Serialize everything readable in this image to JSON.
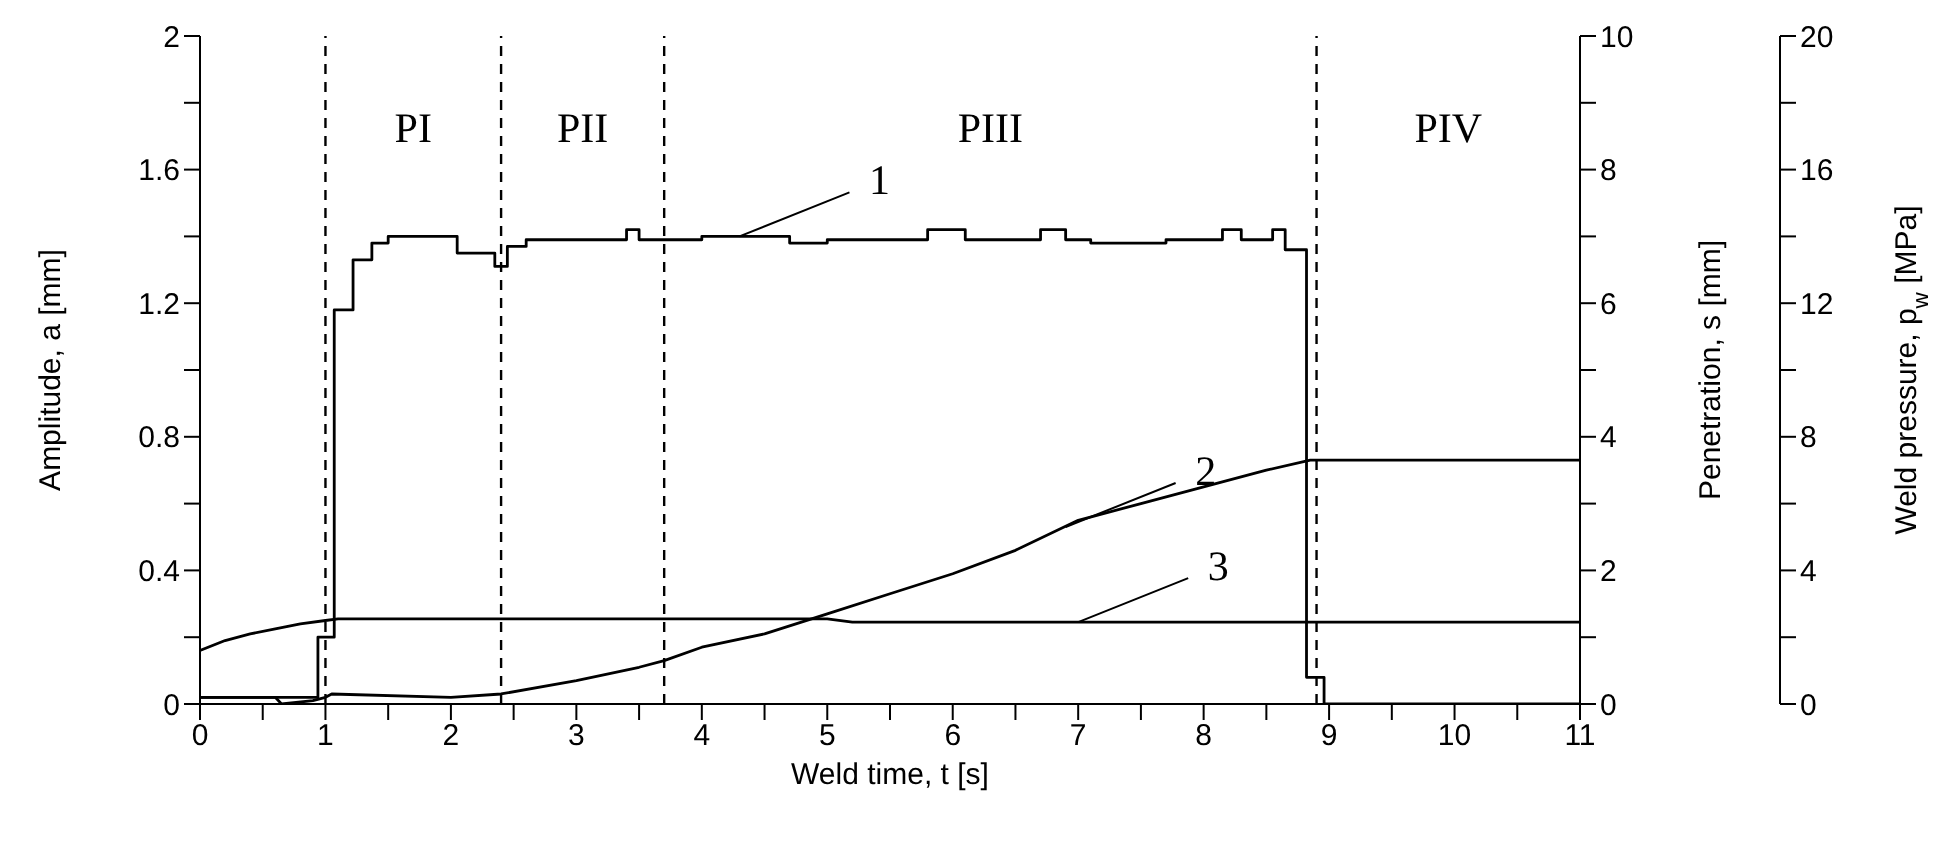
{
  "chart_data": {
    "type": "line",
    "xlabel": "Weld time, t [s]",
    "ylabel": "Amplitude, a [mm]",
    "y2label": "Penetration, s [mm]",
    "y3label": "Weld pressure, p$_{w}$ [MPa]",
    "xlim": [
      0,
      11
    ],
    "xticks": [
      0,
      {
        "value": 0.5,
        "label": null
      },
      1,
      {
        "value": 1.5,
        "label": null
      },
      2,
      {
        "value": 2.5,
        "label": null
      },
      3,
      {
        "value": 3.5,
        "label": null
      },
      4,
      {
        "value": 4.5,
        "label": null
      },
      5,
      {
        "value": 5.5,
        "label": null
      },
      6,
      {
        "value": 6.5,
        "label": null
      },
      7,
      {
        "value": 7.5,
        "label": null
      },
      8,
      {
        "value": 8.5,
        "label": null
      },
      9,
      {
        "value": 9.5,
        "label": null
      },
      10,
      {
        "value": 10.5,
        "label": null
      },
      11
    ],
    "ylim": [
      0,
      2
    ],
    "yticks": [
      0,
      {
        "value": 0.2,
        "label": null
      },
      0.4,
      {
        "value": 0.6,
        "label": null
      },
      0.8,
      {
        "value": 1,
        "label": null
      },
      1.2,
      {
        "value": 1.4,
        "label": null
      },
      1.6,
      {
        "value": 1.8,
        "label": null
      },
      2
    ],
    "y2lim": [
      0,
      10
    ],
    "y2ticks": [
      0,
      {
        "value": 1,
        "label": null
      },
      2,
      {
        "value": 3,
        "label": null
      },
      4,
      {
        "value": 5,
        "label": null
      },
      6,
      {
        "value": 7,
        "label": null
      },
      8,
      {
        "value": 9,
        "label": null
      },
      10
    ],
    "y3lim": [
      0,
      20
    ],
    "y3ticks": [
      0,
      {
        "value": 2,
        "label": null
      },
      4,
      {
        "value": 6,
        "label": null
      },
      8,
      {
        "value": 10,
        "label": null
      },
      12,
      {
        "value": 14,
        "label": null
      },
      16,
      {
        "value": 18,
        "label": null
      },
      20
    ],
    "marker": "none",
    "line_style": "solid",
    "series": [
      {
        "type": "step",
        "color": "#000000",
        "x": [
          0,
          0.94,
          1.07,
          1.22,
          1.37,
          1.5,
          2.05,
          2.35,
          2.45,
          2.6,
          3.4,
          3.5,
          4.0,
          4.7,
          5.0,
          5.8,
          6.1,
          6.7,
          6.9,
          7.1,
          7.7,
          8.15,
          8.3,
          8.55,
          8.65,
          8.82,
          8.96,
          11
        ],
        "values": [
          0.02,
          0.2,
          1.18,
          1.33,
          1.38,
          1.4,
          1.35,
          1.31,
          1.37,
          1.39,
          1.42,
          1.39,
          1.4,
          1.38,
          1.39,
          1.42,
          1.39,
          1.42,
          1.39,
          1.38,
          1.39,
          1.42,
          1.39,
          1.42,
          1.36,
          0.08,
          0,
          0
        ]
      },
      {
        "axis": "y2",
        "color": "#000000",
        "x": [
          0,
          0.6,
          0.65,
          0.9,
          1.0,
          1.05,
          2,
          2.4,
          3,
          3.5,
          3.7,
          4,
          4.5,
          5,
          5.5,
          6,
          6.5,
          7,
          7.5,
          8,
          8.5,
          8.85,
          11
        ],
        "values": [
          0.1,
          0.1,
          0,
          0.05,
          0.1,
          0.15,
          0.1,
          0.15,
          0.35,
          0.55,
          0.65,
          0.85,
          1.05,
          1.35,
          1.65,
          1.95,
          2.3,
          2.75,
          3.0,
          3.25,
          3.5,
          3.65,
          3.65
        ]
      },
      {
        "axis": "y3",
        "color": "#000000",
        "x": [
          0,
          0.2,
          0.4,
          0.6,
          0.8,
          1.0,
          1.1,
          5,
          5.2,
          11
        ],
        "values": [
          1.6,
          1.9,
          2.1,
          2.25,
          2.4,
          2.5,
          2.55,
          2.55,
          2.45,
          2.45
        ]
      }
    ],
    "ref_lines": [
      {
        "axis": "x",
        "value": 1,
        "line_style": "dashed",
        "color": "#000000"
      },
      {
        "axis": "x",
        "value": 2.4,
        "line_style": "dashed",
        "color": "#000000"
      },
      {
        "axis": "x",
        "value": 3.7,
        "line_style": "dashed",
        "color": "#000000"
      },
      {
        "axis": "x",
        "value": 8.9,
        "line_style": "dashed",
        "color": "#000000"
      }
    ],
    "annotations": [
      "PI",
      "PII",
      "PIII",
      "PIV",
      {
        "text": "1",
        "x": 4.3,
        "y": 1.4
      },
      {
        "text": "2",
        "x": 6.9,
        "y": 0.53
      },
      {
        "text": "3",
        "x": 7.0,
        "y": 0.245
      }
    ]
  }
}
